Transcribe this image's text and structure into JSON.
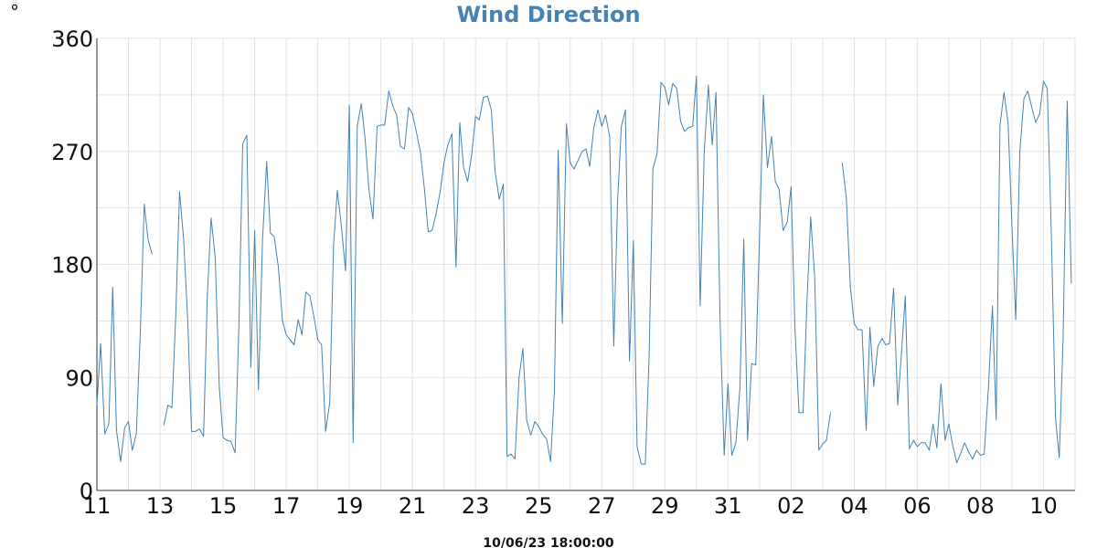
{
  "colors": {
    "title": "#4682b4",
    "line": "#4682b4",
    "grid": "#e3e3e3",
    "axis": "#333333"
  },
  "chart_data": {
    "type": "line",
    "title": "Wind Direction",
    "unit_label": "°",
    "xlabel": "",
    "ylabel": "",
    "footer": "10/06/23 18:00:00",
    "ylim": [
      0,
      360
    ],
    "y_ticks": [
      0,
      90,
      180,
      270,
      360
    ],
    "x_range_index": [
      0,
      31
    ],
    "x_tick_labels": [
      "11",
      "13",
      "15",
      "17",
      "19",
      "21",
      "23",
      "25",
      "27",
      "29",
      "31",
      "02",
      "04",
      "06",
      "08",
      "10"
    ],
    "x_tick_index": [
      0,
      2,
      4,
      6,
      8,
      10,
      12,
      14,
      16,
      18,
      20,
      22,
      24,
      26,
      28,
      30
    ],
    "grid": true,
    "series": [
      {
        "segments": [
          [
            [
              0.0,
              68
            ],
            [
              0.12,
              117
            ],
            [
              0.25,
              45
            ],
            [
              0.38,
              53
            ],
            [
              0.5,
              162
            ],
            [
              0.62,
              48
            ],
            [
              0.75,
              23
            ],
            [
              0.88,
              50
            ],
            [
              1.0,
              55
            ],
            [
              1.12,
              32
            ],
            [
              1.25,
              45
            ],
            [
              1.38,
              128
            ],
            [
              1.5,
              228
            ],
            [
              1.62,
              200
            ],
            [
              1.75,
              188
            ]
          ],
          [
            [
              2.12,
              52
            ],
            [
              2.25,
              68
            ],
            [
              2.38,
              66
            ],
            [
              2.5,
              140
            ],
            [
              2.62,
              238
            ],
            [
              2.75,
              200
            ],
            [
              2.88,
              135
            ],
            [
              3.0,
              47
            ],
            [
              3.12,
              47
            ],
            [
              3.25,
              49
            ],
            [
              3.38,
              43
            ],
            [
              3.5,
              155
            ],
            [
              3.62,
              217
            ],
            [
              3.75,
              186
            ],
            [
              3.88,
              82
            ],
            [
              4.0,
              42
            ],
            [
              4.12,
              40
            ],
            [
              4.25,
              39
            ],
            [
              4.38,
              30
            ],
            [
              4.5,
              130
            ],
            [
              4.62,
              276
            ],
            [
              4.75,
              283
            ],
            [
              4.88,
              98
            ],
            [
              5.0,
              207
            ],
            [
              5.12,
              80
            ],
            [
              5.25,
              200
            ],
            [
              5.38,
              262
            ],
            [
              5.5,
              205
            ],
            [
              5.62,
              202
            ],
            [
              5.75,
              178
            ],
            [
              5.88,
              135
            ],
            [
              6.0,
              124
            ],
            [
              6.12,
              120
            ],
            [
              6.25,
              116
            ],
            [
              6.38,
              136
            ],
            [
              6.5,
              124
            ],
            [
              6.62,
              158
            ],
            [
              6.75,
              155
            ],
            [
              6.88,
              138
            ],
            [
              7.0,
              120
            ],
            [
              7.12,
              116
            ],
            [
              7.25,
              47
            ],
            [
              7.38,
              70
            ],
            [
              7.5,
              196
            ],
            [
              7.62,
              239
            ],
            [
              7.75,
              210
            ],
            [
              7.88,
              175
            ],
            [
              8.0,
              307
            ],
            [
              8.12,
              38
            ],
            [
              8.25,
              290
            ],
            [
              8.38,
              308
            ],
            [
              8.5,
              280
            ],
            [
              8.62,
              240
            ],
            [
              8.75,
              216
            ],
            [
              8.88,
              290
            ],
            [
              9.0,
              291
            ],
            [
              9.12,
              291
            ],
            [
              9.25,
              318
            ],
            [
              9.38,
              306
            ],
            [
              9.5,
              299
            ],
            [
              9.62,
              274
            ],
            [
              9.75,
              272
            ],
            [
              9.88,
              305
            ],
            [
              10.0,
              300
            ],
            [
              10.12,
              286
            ],
            [
              10.25,
              270
            ],
            [
              10.38,
              240
            ],
            [
              10.5,
              206
            ],
            [
              10.62,
              207
            ],
            [
              10.75,
              220
            ],
            [
              10.88,
              238
            ],
            [
              11.0,
              261
            ],
            [
              11.12,
              275
            ],
            [
              11.25,
              284
            ],
            [
              11.38,
              178
            ],
            [
              11.5,
              293
            ],
            [
              11.62,
              257
            ],
            [
              11.75,
              246
            ],
            [
              11.88,
              268
            ],
            [
              12.0,
              298
            ],
            [
              12.12,
              295
            ],
            [
              12.25,
              313
            ],
            [
              12.38,
              314
            ],
            [
              12.5,
              303
            ],
            [
              12.62,
              254
            ],
            [
              12.75,
              232
            ],
            [
              12.88,
              244
            ],
            [
              13.0,
              27
            ],
            [
              13.12,
              29
            ],
            [
              13.25,
              25
            ],
            [
              13.38,
              90
            ],
            [
              13.5,
              113
            ],
            [
              13.62,
              56
            ],
            [
              13.75,
              44
            ],
            [
              13.88,
              55
            ],
            [
              14.0,
              51
            ],
            [
              14.12,
              45
            ],
            [
              14.25,
              41
            ],
            [
              14.38,
              23
            ],
            [
              14.5,
              80
            ],
            [
              14.62,
              271
            ],
            [
              14.75,
              133
            ],
            [
              14.88,
              292
            ],
            [
              15.0,
              261
            ],
            [
              15.12,
              256
            ],
            [
              15.25,
              263
            ],
            [
              15.38,
              270
            ],
            [
              15.5,
              272
            ],
            [
              15.62,
              258
            ],
            [
              15.75,
              289
            ],
            [
              15.88,
              303
            ],
            [
              16.0,
              290
            ],
            [
              16.12,
              299
            ],
            [
              16.25,
              282
            ],
            [
              16.38,
              115
            ],
            [
              16.5,
              230
            ],
            [
              16.62,
              290
            ],
            [
              16.75,
              303
            ],
            [
              16.88,
              103
            ],
            [
              17.0,
              199
            ],
            [
              17.12,
              35
            ],
            [
              17.25,
              21
            ],
            [
              17.38,
              21
            ],
            [
              17.5,
              105
            ],
            [
              17.62,
              256
            ],
            [
              17.75,
              268
            ],
            [
              17.88,
              325
            ],
            [
              18.0,
              321
            ],
            [
              18.12,
              307
            ],
            [
              18.25,
              324
            ],
            [
              18.38,
              320
            ],
            [
              18.5,
              294
            ],
            [
              18.62,
              286
            ],
            [
              18.75,
              289
            ],
            [
              18.88,
              290
            ],
            [
              19.0,
              330
            ],
            [
              19.12,
              147
            ],
            [
              19.25,
              270
            ],
            [
              19.38,
              323
            ],
            [
              19.5,
              275
            ],
            [
              19.62,
              317
            ],
            [
              19.75,
              135
            ],
            [
              19.88,
              28
            ],
            [
              20.0,
              85
            ],
            [
              20.12,
              28
            ],
            [
              20.25,
              38
            ],
            [
              20.38,
              82
            ],
            [
              20.5,
              200
            ],
            [
              20.62,
              40
            ],
            [
              20.75,
              101
            ],
            [
              20.88,
              100
            ],
            [
              21.0,
              200
            ],
            [
              21.12,
              315
            ],
            [
              21.25,
              257
            ],
            [
              21.38,
              282
            ],
            [
              21.5,
              246
            ],
            [
              21.62,
              240
            ],
            [
              21.75,
              207
            ],
            [
              21.88,
              214
            ],
            [
              22.0,
              242
            ],
            [
              22.12,
              131
            ],
            [
              22.25,
              62
            ],
            [
              22.38,
              62
            ],
            [
              22.5,
              148
            ],
            [
              22.62,
              218
            ],
            [
              22.75,
              170
            ],
            [
              22.88,
              32
            ],
            [
              23.0,
              37
            ],
            [
              23.12,
              40
            ],
            [
              23.25,
              62
            ]
          ],
          [
            [
              23.62,
              261
            ],
            [
              23.75,
              233
            ],
            [
              23.88,
              162
            ],
            [
              24.0,
              133
            ],
            [
              24.12,
              128
            ],
            [
              24.25,
              128
            ],
            [
              24.38,
              48
            ],
            [
              24.5,
              130
            ],
            [
              24.62,
              83
            ],
            [
              24.75,
              115
            ],
            [
              24.88,
              121
            ],
            [
              25.0,
              116
            ],
            [
              25.12,
              117
            ],
            [
              25.25,
              161
            ],
            [
              25.38,
              68
            ],
            [
              25.5,
              110
            ],
            [
              25.62,
              155
            ],
            [
              25.75,
              33
            ],
            [
              25.88,
              40
            ],
            [
              26.0,
              35
            ],
            [
              26.12,
              38
            ],
            [
              26.25,
              38
            ],
            [
              26.38,
              32
            ],
            [
              26.5,
              53
            ],
            [
              26.62,
              34
            ],
            [
              26.75,
              85
            ],
            [
              26.88,
              40
            ],
            [
              27.0,
              53
            ],
            [
              27.12,
              36
            ],
            [
              27.25,
              22
            ],
            [
              27.38,
              30
            ],
            [
              27.5,
              38
            ],
            [
              27.62,
              31
            ],
            [
              27.75,
              25
            ],
            [
              27.88,
              32
            ],
            [
              28.0,
              28
            ],
            [
              28.12,
              29
            ],
            [
              28.25,
              80
            ],
            [
              28.38,
              147
            ],
            [
              28.5,
              56
            ],
            [
              28.62,
              291
            ],
            [
              28.75,
              317
            ],
            [
              28.88,
              292
            ],
            [
              29.0,
              210
            ],
            [
              29.12,
              136
            ],
            [
              29.25,
              270
            ],
            [
              29.38,
              312
            ],
            [
              29.5,
              318
            ],
            [
              29.62,
              306
            ],
            [
              29.75,
              293
            ],
            [
              29.88,
              300
            ],
            [
              30.0,
              326
            ],
            [
              30.12,
              320
            ],
            [
              30.25,
              203
            ],
            [
              30.38,
              58
            ],
            [
              30.5,
              26
            ],
            [
              30.62,
              120
            ],
            [
              30.75,
              310
            ],
            [
              30.88,
              165
            ]
          ]
        ]
      }
    ]
  }
}
